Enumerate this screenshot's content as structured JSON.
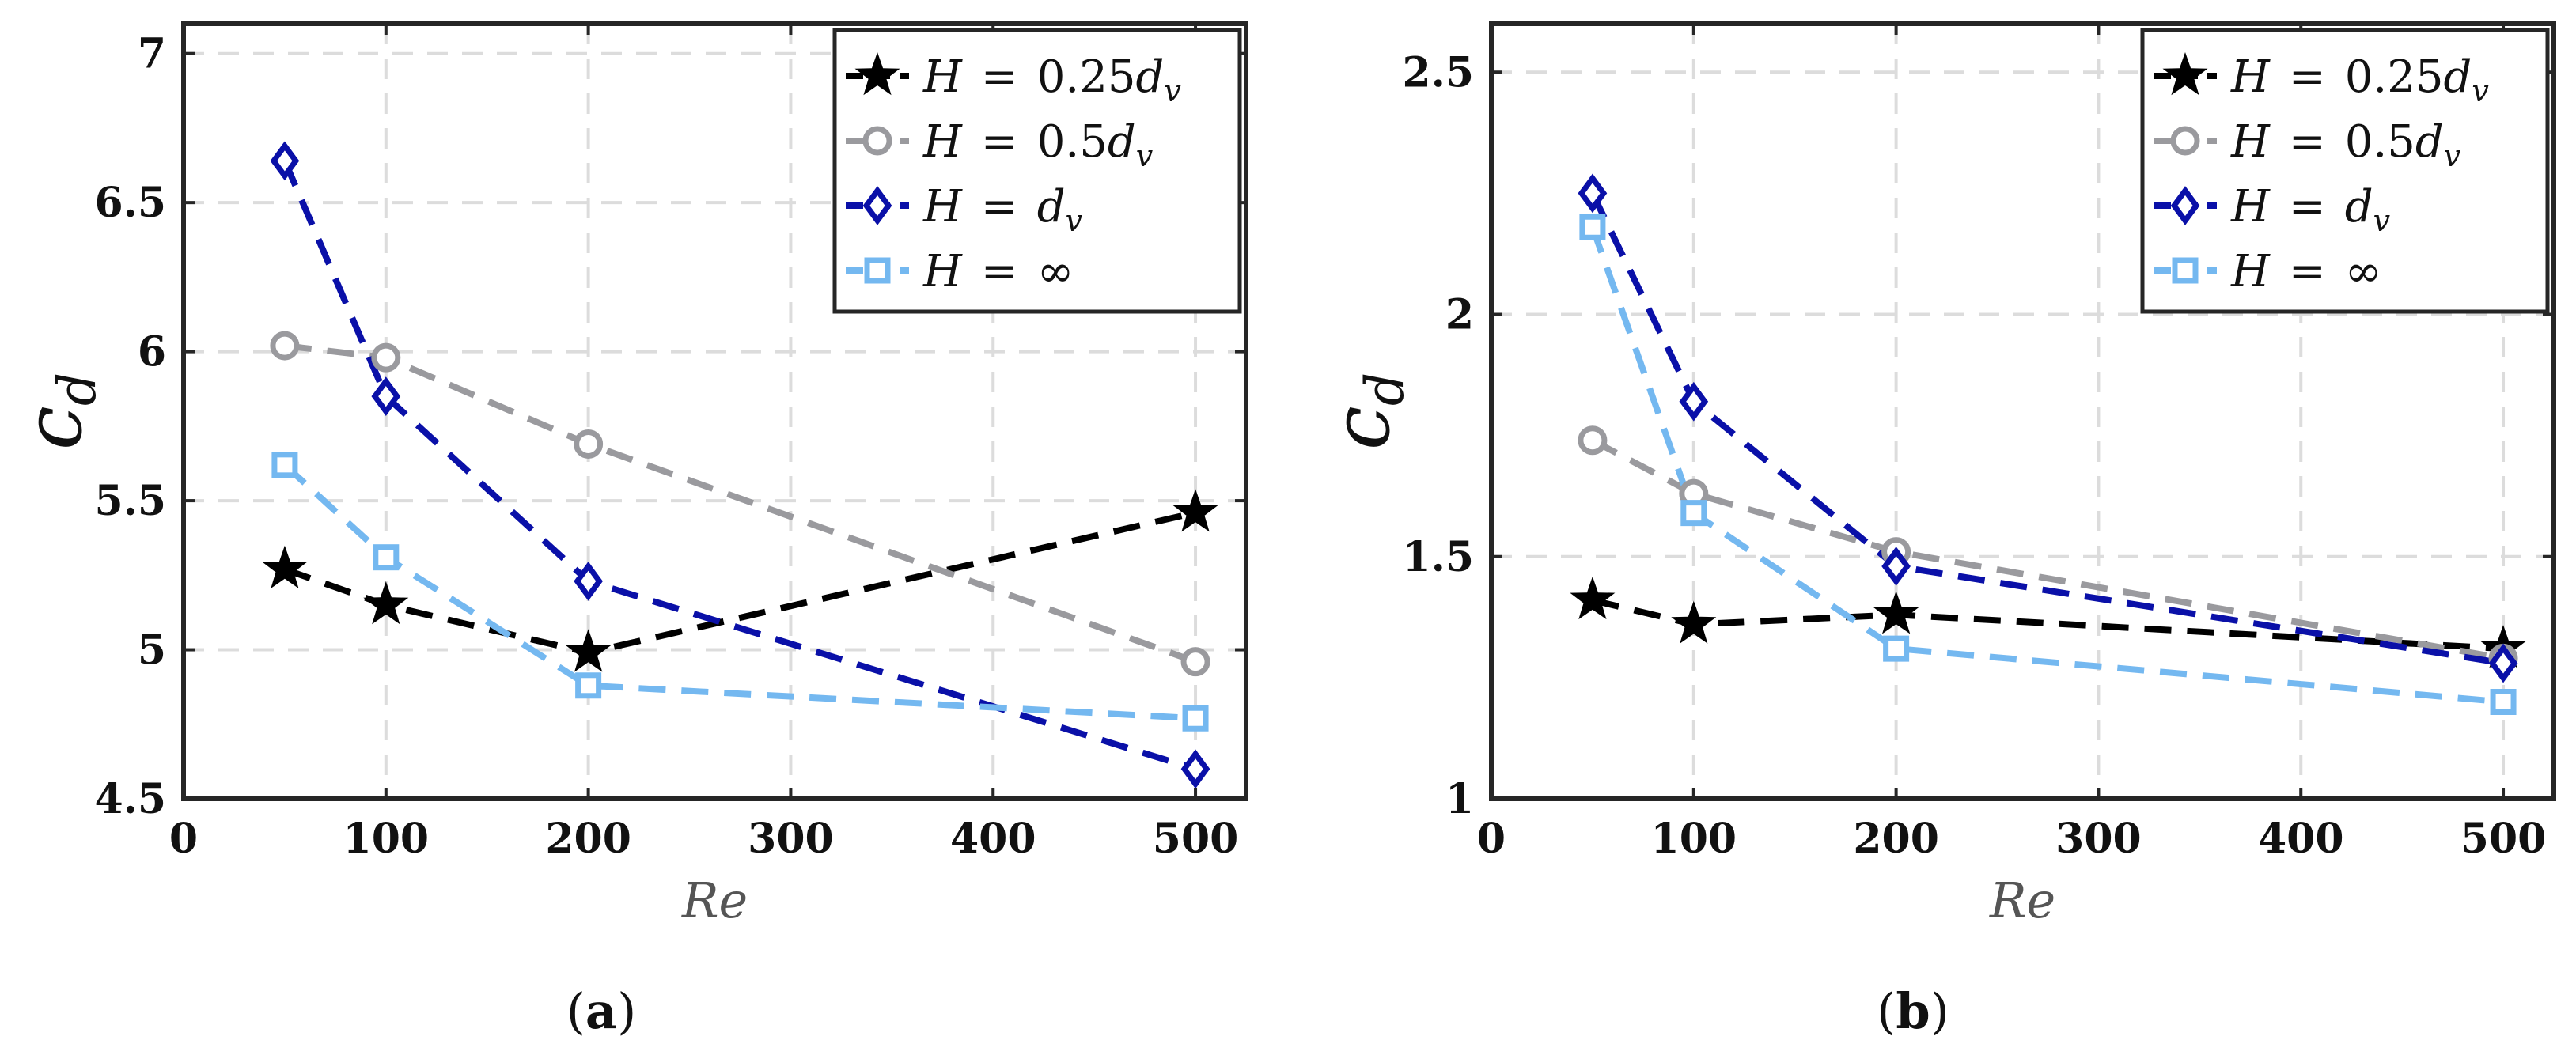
{
  "chart_data": [
    {
      "type": "line",
      "caption_letter": "a",
      "xlabel": "Re",
      "ylabel": "c_d",
      "ylabel_main": "c",
      "ylabel_sub": "d",
      "xlim": [
        0,
        525
      ],
      "ylim": [
        4.5,
        7.1
      ],
      "xticks": [
        0,
        100,
        200,
        300,
        400,
        500
      ],
      "yticks": [
        4.5,
        5,
        5.5,
        6,
        6.5,
        7
      ],
      "ytick_labels": [
        "4.5",
        "5",
        "5.5",
        "6",
        "6.5",
        "7"
      ],
      "grid": true,
      "legend_position": "top-right",
      "x": [
        50,
        100,
        200,
        500
      ],
      "series": [
        {
          "name": "H = 0.25d_v",
          "lhs": "H",
          "rhs": "0.25",
          "var": "d",
          "sub": "v",
          "marker": "star",
          "color": "#000000",
          "values": [
            5.27,
            5.15,
            4.99,
            5.46
          ]
        },
        {
          "name": "H = 0.5d_v",
          "lhs": "H",
          "rhs": "0.5",
          "var": "d",
          "sub": "v",
          "marker": "circle",
          "color": "#9a9a9e",
          "values": [
            6.02,
            5.98,
            5.69,
            4.96
          ]
        },
        {
          "name": "H = d_v",
          "lhs": "H",
          "rhs": "",
          "var": "d",
          "sub": "v",
          "marker": "diamond",
          "color": "#0a10a8",
          "values": [
            6.64,
            5.85,
            5.23,
            4.6
          ]
        },
        {
          "name": "H = ∞",
          "lhs": "H",
          "rhs": "∞",
          "var": "",
          "sub": "",
          "marker": "square",
          "color": "#74b8f0",
          "values": [
            5.62,
            5.31,
            4.88,
            4.77
          ]
        }
      ]
    },
    {
      "type": "line",
      "caption_letter": "b",
      "xlabel": "Re",
      "ylabel": "c_d",
      "ylabel_main": "c",
      "ylabel_sub": "d",
      "xlim": [
        0,
        525
      ],
      "ylim": [
        1,
        2.6
      ],
      "xticks": [
        0,
        100,
        200,
        300,
        400,
        500
      ],
      "yticks": [
        1,
        1.5,
        2,
        2.5
      ],
      "ytick_labels": [
        "1",
        "1.5",
        "2",
        "2.5"
      ],
      "grid": true,
      "legend_position": "top-right",
      "x": [
        50,
        100,
        200,
        500
      ],
      "series": [
        {
          "name": "H = 0.25d_v",
          "lhs": "H",
          "rhs": "0.25",
          "var": "d",
          "sub": "v",
          "marker": "star",
          "color": "#000000",
          "values": [
            1.41,
            1.36,
            1.38,
            1.31
          ]
        },
        {
          "name": "H = 0.5d_v",
          "lhs": "H",
          "rhs": "0.5",
          "var": "d",
          "sub": "v",
          "marker": "circle",
          "color": "#9a9a9e",
          "values": [
            1.74,
            1.63,
            1.51,
            1.29
          ]
        },
        {
          "name": "H = d_v",
          "lhs": "H",
          "rhs": "",
          "var": "d",
          "sub": "v",
          "marker": "diamond",
          "color": "#0a10a8",
          "values": [
            2.25,
            1.82,
            1.48,
            1.28
          ]
        },
        {
          "name": "H = ∞",
          "lhs": "H",
          "rhs": "∞",
          "var": "",
          "sub": "",
          "marker": "square",
          "color": "#74b8f0",
          "values": [
            2.18,
            1.59,
            1.31,
            1.2
          ]
        }
      ]
    }
  ]
}
